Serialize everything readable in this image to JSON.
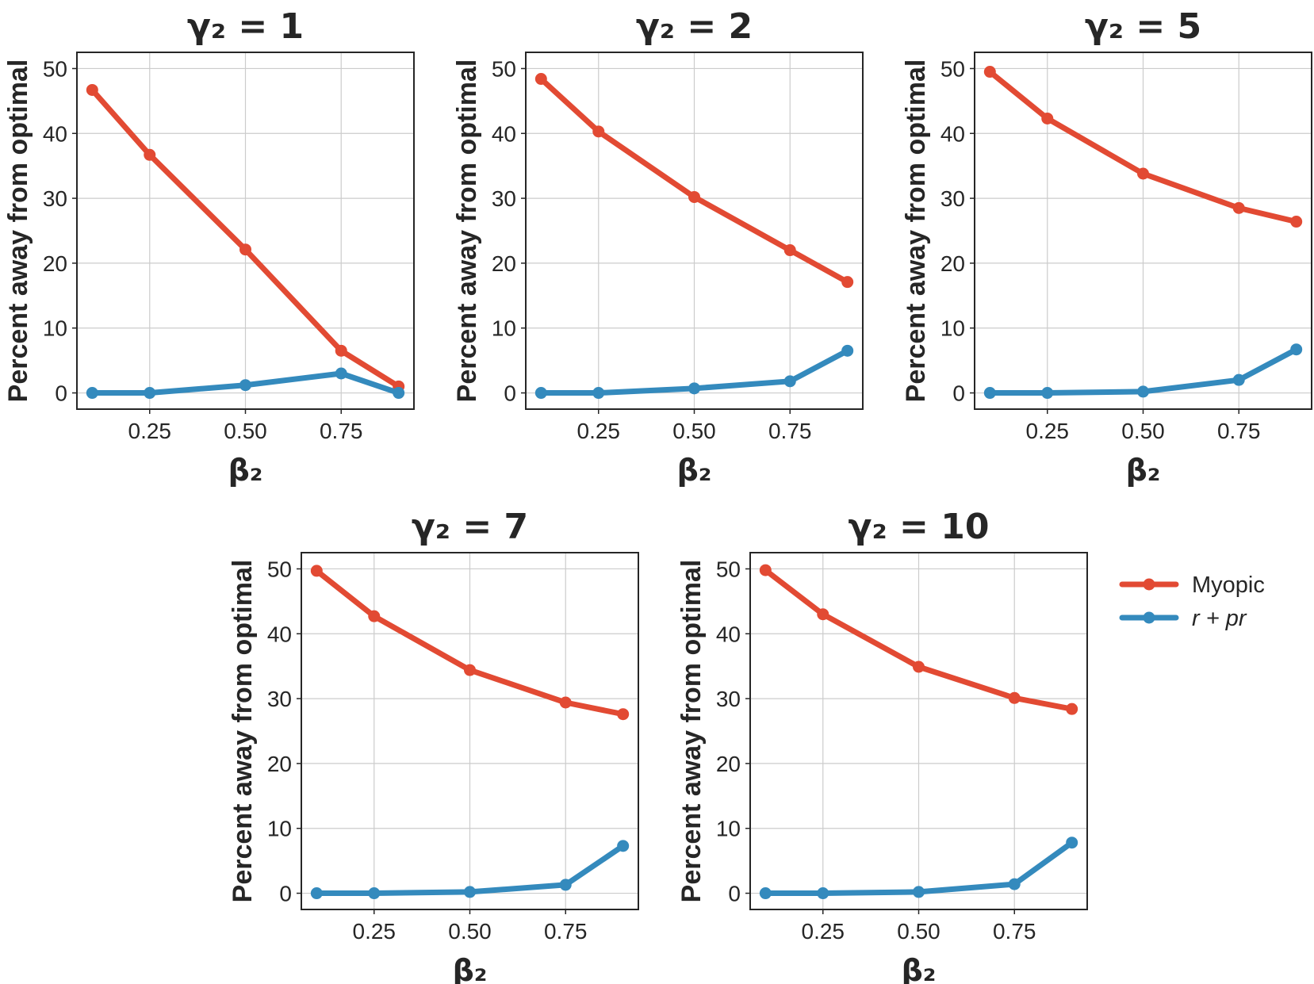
{
  "chart_data": [
    {
      "type": "line",
      "title": "γ₂ = 1",
      "xlabel": "β₂",
      "ylabel": "Percent away from optimal",
      "x": [
        0.1,
        0.25,
        0.5,
        0.75,
        0.9
      ],
      "xticks": [
        "0.25",
        "0.50",
        "0.75"
      ],
      "yticks": [
        "0",
        "10",
        "20",
        "30",
        "40",
        "50"
      ],
      "xlim": [
        0.06,
        0.94
      ],
      "ylim": [
        -2.5,
        52.5
      ],
      "grid": true,
      "series": [
        {
          "name": "Myopic",
          "color": "#E24A33",
          "values": [
            46.7,
            36.7,
            22.1,
            6.5,
            1.0
          ]
        },
        {
          "name": "r + pr",
          "color": "#348ABD",
          "values": [
            0.0,
            0.0,
            1.2,
            3.0,
            0.0
          ]
        }
      ]
    },
    {
      "type": "line",
      "title": "γ₂ = 2",
      "xlabel": "β₂",
      "ylabel": "Percent away from optimal",
      "x": [
        0.1,
        0.25,
        0.5,
        0.75,
        0.9
      ],
      "xticks": [
        "0.25",
        "0.50",
        "0.75"
      ],
      "yticks": [
        "0",
        "10",
        "20",
        "30",
        "40",
        "50"
      ],
      "xlim": [
        0.06,
        0.94
      ],
      "ylim": [
        -2.5,
        52.5
      ],
      "grid": true,
      "series": [
        {
          "name": "Myopic",
          "color": "#E24A33",
          "values": [
            48.4,
            40.3,
            30.2,
            22.0,
            17.1
          ]
        },
        {
          "name": "r + pr",
          "color": "#348ABD",
          "values": [
            0.0,
            0.0,
            0.7,
            1.8,
            6.5
          ]
        }
      ]
    },
    {
      "type": "line",
      "title": "γ₂ = 5",
      "xlabel": "β₂",
      "ylabel": "Percent away from optimal",
      "x": [
        0.1,
        0.25,
        0.5,
        0.75,
        0.9
      ],
      "xticks": [
        "0.25",
        "0.50",
        "0.75"
      ],
      "yticks": [
        "0",
        "10",
        "20",
        "30",
        "40",
        "50"
      ],
      "xlim": [
        0.06,
        0.94
      ],
      "ylim": [
        -2.5,
        52.5
      ],
      "grid": true,
      "series": [
        {
          "name": "Myopic",
          "color": "#E24A33",
          "values": [
            49.5,
            42.3,
            33.8,
            28.5,
            26.4
          ]
        },
        {
          "name": "r + pr",
          "color": "#348ABD",
          "values": [
            0.0,
            0.0,
            0.2,
            2.0,
            6.7
          ]
        }
      ]
    },
    {
      "type": "line",
      "title": "γ₂ = 7",
      "xlabel": "β₂",
      "ylabel": "Percent away from optimal",
      "x": [
        0.1,
        0.25,
        0.5,
        0.75,
        0.9
      ],
      "xticks": [
        "0.25",
        "0.50",
        "0.75"
      ],
      "yticks": [
        "0",
        "10",
        "20",
        "30",
        "40",
        "50"
      ],
      "xlim": [
        0.06,
        0.94
      ],
      "ylim": [
        -2.5,
        52.5
      ],
      "grid": true,
      "series": [
        {
          "name": "Myopic",
          "color": "#E24A33",
          "values": [
            49.7,
            42.7,
            34.4,
            29.4,
            27.6
          ]
        },
        {
          "name": "r + pr",
          "color": "#348ABD",
          "values": [
            0.0,
            0.0,
            0.2,
            1.3,
            7.3
          ]
        }
      ]
    },
    {
      "type": "line",
      "title": "γ₂ = 10",
      "xlabel": "β₂",
      "ylabel": "Percent away from optimal",
      "x": [
        0.1,
        0.25,
        0.5,
        0.75,
        0.9
      ],
      "xticks": [
        "0.25",
        "0.50",
        "0.75"
      ],
      "yticks": [
        "0",
        "10",
        "20",
        "30",
        "40",
        "50"
      ],
      "xlim": [
        0.06,
        0.94
      ],
      "ylim": [
        -2.5,
        52.5
      ],
      "grid": true,
      "series": [
        {
          "name": "Myopic",
          "color": "#E24A33",
          "values": [
            49.8,
            43.0,
            34.9,
            30.1,
            28.4
          ]
        },
        {
          "name": "r + pr",
          "color": "#348ABD",
          "values": [
            0.0,
            0.0,
            0.2,
            1.4,
            7.8
          ]
        }
      ]
    }
  ],
  "legend": {
    "placement": "right",
    "items": [
      {
        "label": "Myopic",
        "color": "#E24A33",
        "italic": false
      },
      {
        "label": "r + pr",
        "color": "#348ABD",
        "italic": true
      }
    ]
  }
}
